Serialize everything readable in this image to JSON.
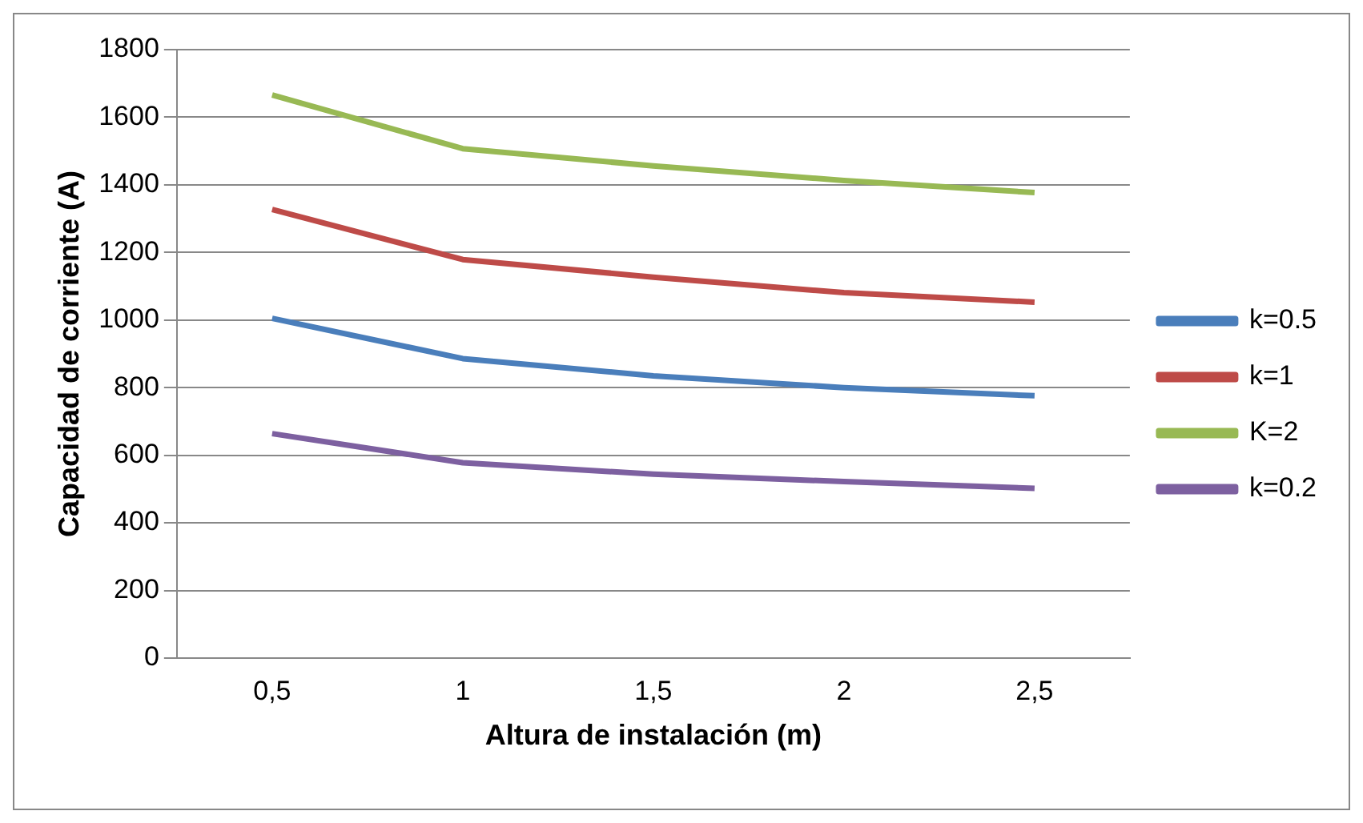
{
  "chart_data": {
    "type": "line",
    "xlabel": "Altura de instalación (m)",
    "ylabel": "Capacidad de corriente (A)",
    "categories": [
      "0,5",
      "1",
      "1,5",
      "2",
      "2,5"
    ],
    "ylim": [
      0,
      1800
    ],
    "yticks": [
      0,
      200,
      400,
      600,
      800,
      1000,
      1200,
      1400,
      1600,
      1800
    ],
    "grid": "y",
    "legend": "right",
    "marker": "none",
    "series": [
      {
        "name": "k=0.5",
        "color": "#4a7ebb",
        "values": [
          1005,
          886,
          835,
          800,
          776
        ]
      },
      {
        "name": "k=1",
        "color": "#be4b48",
        "values": [
          1327,
          1179,
          1127,
          1081,
          1053
        ]
      },
      {
        "name": "K=2",
        "color": "#98b954",
        "values": [
          1666,
          1507,
          1456,
          1413,
          1377
        ]
      },
      {
        "name": "k=0.2",
        "color": "#7d60a0",
        "values": [
          664,
          578,
          544,
          522,
          502
        ]
      }
    ]
  }
}
